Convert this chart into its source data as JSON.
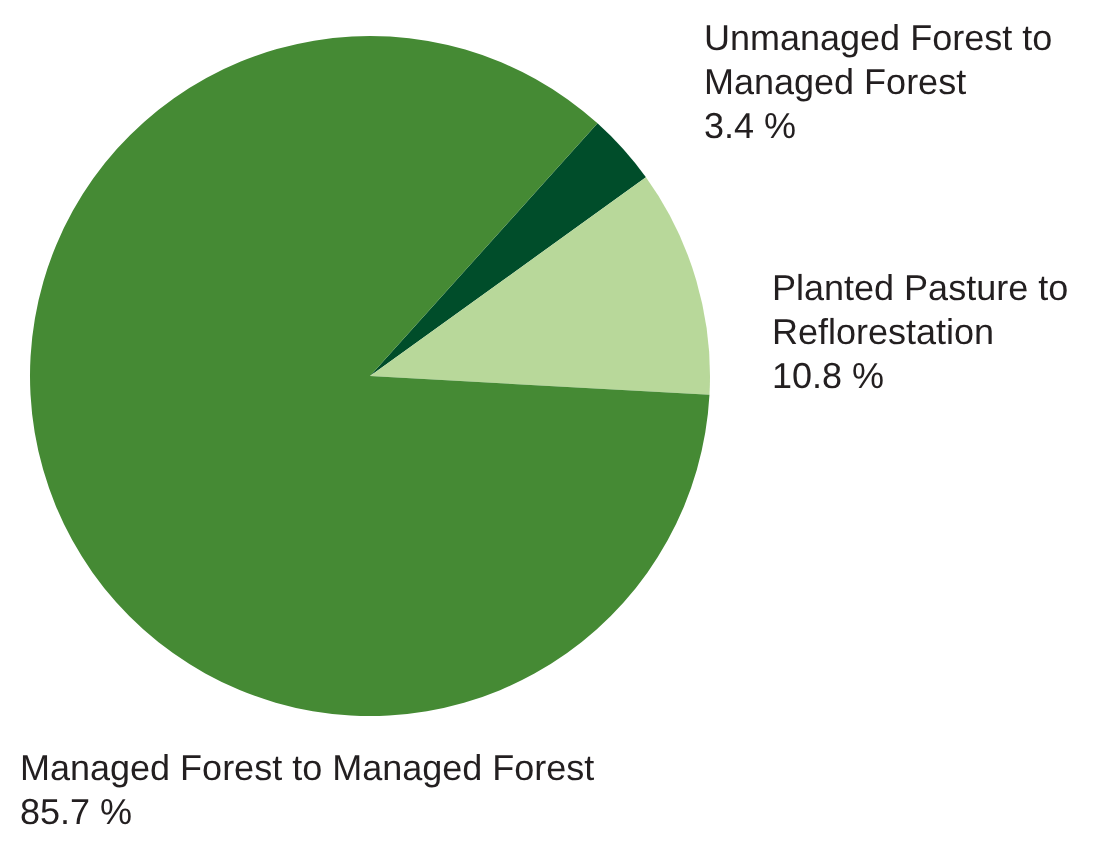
{
  "chart_data": {
    "type": "pie",
    "categories": [
      "Unmanaged Forest to Managed Forest",
      "Planted Pasture to Reflorestation",
      "Managed Forest to Managed Forest"
    ],
    "values": [
      3.4,
      10.8,
      85.7
    ],
    "value_labels": [
      "3.4 %",
      "10.8 %",
      "85.7 %"
    ],
    "colors": [
      "#004d2a",
      "#b8d89a",
      "#458a34"
    ]
  }
}
